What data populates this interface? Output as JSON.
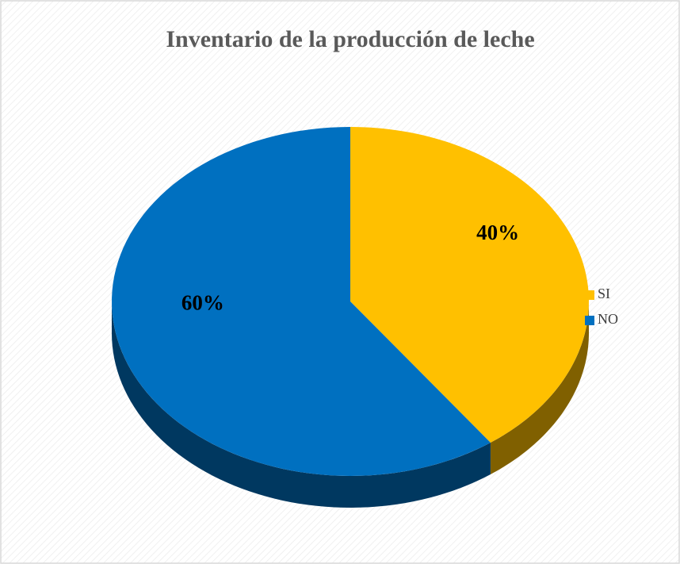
{
  "chart_data": {
    "type": "pie",
    "title": "Inventario de la producción de leche",
    "categories": [
      "SI",
      "NO"
    ],
    "values": [
      40,
      60
    ],
    "value_labels": [
      "40%",
      "60%"
    ],
    "colors": [
      "#ffc000",
      "#0070c0"
    ],
    "legend": "right"
  }
}
